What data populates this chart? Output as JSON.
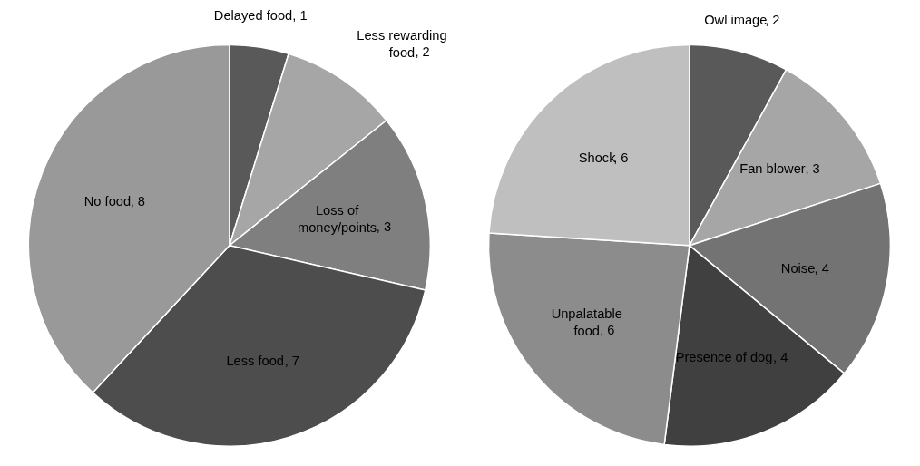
{
  "chart_data": [
    {
      "type": "pie",
      "categories": [
        "Delayed food",
        "Less rewarding food",
        "Loss of money/points",
        "Less food",
        "No food"
      ],
      "values": [
        1,
        2,
        3,
        7,
        8
      ],
      "colors": [
        "#595959",
        "#a6a6a6",
        "#7f7f7f",
        "#4d4d4d",
        "#999999"
      ],
      "value_labels": [
        ", 1",
        ", 2",
        ", 3",
        ", 7",
        ", 8"
      ],
      "legend": false
    },
    {
      "type": "pie",
      "categories": [
        "Owl image",
        "Fan blower",
        "Noise",
        "Presence of dog",
        "Unpalatable food",
        "Shock"
      ],
      "values": [
        2,
        3,
        4,
        4,
        6,
        6
      ],
      "colors": [
        "#595959",
        "#a6a6a6",
        "#737373",
        "#404040",
        "#8c8c8c",
        "#bfbfbf"
      ],
      "value_labels": [
        ", 2",
        ", 3",
        ", 4",
        ", 4",
        ", 6",
        ", 6"
      ],
      "legend": false
    }
  ]
}
